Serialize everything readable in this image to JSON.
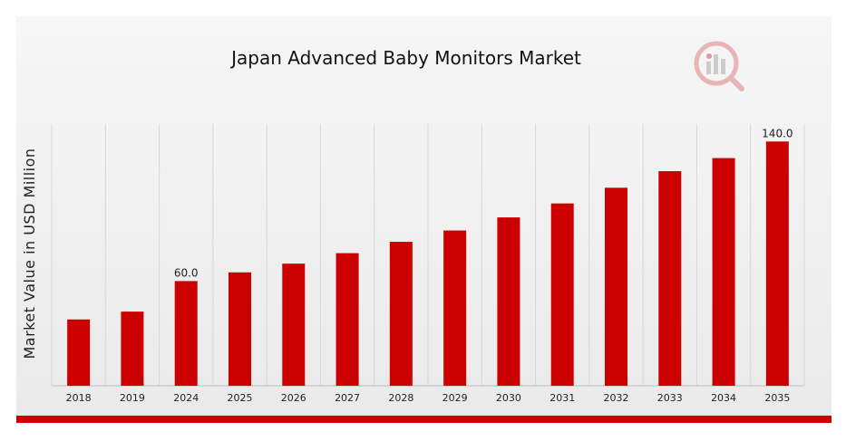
{
  "chart_data": {
    "type": "bar",
    "title": "Japan Advanced Baby Monitors Market",
    "xlabel": "",
    "ylabel": "Market Value in USD Million",
    "categories": [
      "2018",
      "2019",
      "2024",
      "2025",
      "2026",
      "2027",
      "2028",
      "2029",
      "2030",
      "2031",
      "2032",
      "2033",
      "2034",
      "2035"
    ],
    "values": [
      38,
      42.5,
      60,
      65,
      70,
      76,
      82.5,
      89,
      96.5,
      104.5,
      113.5,
      123,
      130.5,
      140
    ],
    "data_labels": [
      {
        "category": "2024",
        "text": "60.0"
      },
      {
        "category": "2035",
        "text": "140.0"
      }
    ],
    "ylim": [
      0,
      150
    ],
    "grid": "vertical",
    "bar_color": "#cc0000",
    "logo_icon": "analytics-magnifier-logo"
  }
}
